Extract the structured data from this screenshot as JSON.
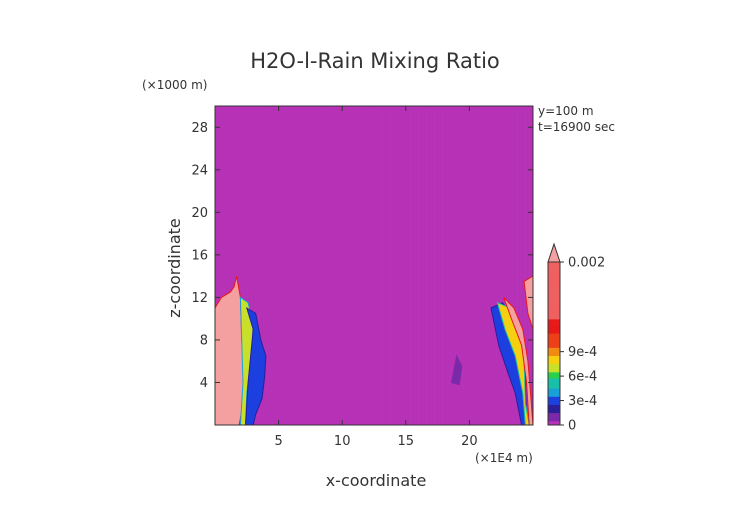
{
  "chart_data": {
    "type": "heatmap",
    "title": "H2O-l-Rain Mixing Ratio",
    "xlabel": "x-coordinate",
    "ylabel": "z-coordinate",
    "x_unit": "(×1E4 m)",
    "y_unit": "(×1000 m)",
    "annotations": [
      "y=100 m",
      "t=16900 sec"
    ],
    "xlim": [
      0,
      25
    ],
    "ylim": [
      0,
      30
    ],
    "x_ticks": [
      5,
      10,
      15,
      20
    ],
    "y_ticks": [
      4,
      8,
      12,
      16,
      20,
      24,
      28
    ],
    "colorbar": {
      "range": [
        0,
        0.002
      ],
      "tick_labels": [
        "0",
        "3e-4",
        "6e-4",
        "9e-4",
        "0.002"
      ],
      "tick_values": [
        0,
        0.0003,
        0.0006,
        0.0009,
        0.002
      ],
      "extend": "max"
    },
    "background_value": 0,
    "field_regions": [
      {
        "name": "left-plume-high",
        "level": 0.002,
        "polygon": [
          [
            0,
            11
          ],
          [
            0.5,
            12
          ],
          [
            1.2,
            12.5
          ],
          [
            1.5,
            13
          ],
          [
            1.7,
            14
          ],
          [
            2.0,
            12
          ],
          [
            2.1,
            8
          ],
          [
            2.3,
            5
          ],
          [
            2.2,
            2
          ],
          [
            1.9,
            0
          ],
          [
            0,
            0
          ]
        ]
      },
      {
        "name": "left-plume-mid",
        "level": 0.0007,
        "polygon": [
          [
            2.0,
            12
          ],
          [
            2.6,
            11.5
          ],
          [
            3.0,
            9.5
          ],
          [
            2.9,
            7
          ],
          [
            2.7,
            5
          ],
          [
            2.5,
            3
          ],
          [
            2.4,
            0
          ],
          [
            2.0,
            0
          ],
          [
            2.2,
            4
          ],
          [
            2.1,
            8
          ]
        ]
      },
      {
        "name": "left-plume-low",
        "level": 0.0003,
        "polygon": [
          [
            2.5,
            11
          ],
          [
            3.2,
            10.5
          ],
          [
            3.6,
            8
          ],
          [
            4.0,
            6.5
          ],
          [
            3.9,
            4.5
          ],
          [
            3.7,
            2.5
          ],
          [
            3.2,
            1
          ],
          [
            3.0,
            0
          ],
          [
            2.4,
            0
          ],
          [
            2.6,
            4
          ],
          [
            3.0,
            9
          ]
        ]
      },
      {
        "name": "right-plume-low",
        "level": 0.0003,
        "polygon": [
          [
            21.7,
            11
          ],
          [
            22.6,
            11.5
          ],
          [
            23.5,
            10
          ],
          [
            24.2,
            7.5
          ],
          [
            24.4,
            4
          ],
          [
            24.5,
            0
          ],
          [
            24.1,
            0
          ],
          [
            23.6,
            3
          ],
          [
            23.0,
            5
          ],
          [
            22.3,
            7.5
          ]
        ]
      },
      {
        "name": "right-plume-mid",
        "level": 0.0008,
        "polygon": [
          [
            22.2,
            11.5
          ],
          [
            23.2,
            11
          ],
          [
            23.9,
            9
          ],
          [
            24.3,
            6
          ],
          [
            24.4,
            2
          ],
          [
            24.7,
            0
          ],
          [
            24.4,
            0
          ],
          [
            24.2,
            3
          ],
          [
            23.6,
            6.5
          ],
          [
            22.8,
            9
          ]
        ]
      },
      {
        "name": "right-plume-high",
        "level": 0.002,
        "polygon": [
          [
            22.7,
            12
          ],
          [
            23.5,
            11
          ],
          [
            24.2,
            9
          ],
          [
            24.6,
            6
          ],
          [
            24.8,
            3
          ],
          [
            25,
            0
          ],
          [
            24.7,
            0
          ],
          [
            24.5,
            4
          ],
          [
            24.1,
            7.5
          ],
          [
            23.3,
            10
          ]
        ]
      },
      {
        "name": "right-cap-high",
        "level": 0.002,
        "polygon": [
          [
            24.3,
            13.5
          ],
          [
            25,
            14
          ],
          [
            25,
            9
          ],
          [
            24.6,
            10.5
          ]
        ]
      },
      {
        "name": "small-trace",
        "level": 0.0001,
        "polygon": [
          [
            18.6,
            4
          ],
          [
            19.0,
            6.5
          ],
          [
            19.4,
            5.5
          ],
          [
            19.2,
            3.8
          ]
        ]
      }
    ]
  }
}
